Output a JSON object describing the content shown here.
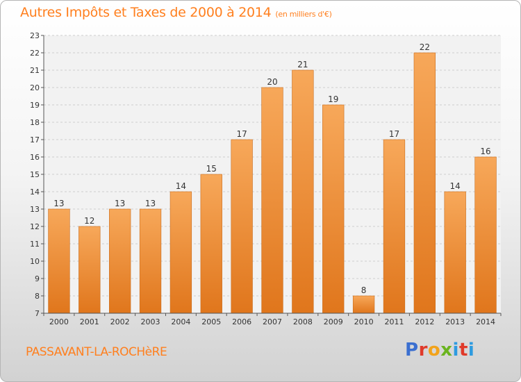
{
  "header": {
    "title": "Autres Impôts et Taxes de 2000 à 2014",
    "unit": "(en milliers d'€)"
  },
  "footer": {
    "commune": "PASSAVANT-LA-ROCHèRE",
    "logo": {
      "letters": [
        "P",
        "r",
        "o",
        "x",
        "i",
        "t",
        "i"
      ],
      "colors": [
        "#3b6fd0",
        "#e03a2a",
        "#f2a31b",
        "#6ab41f",
        "#2e9be0",
        "#e03a2a",
        "#2e9be0"
      ]
    }
  },
  "colors": {
    "accent": "#ff7f1e",
    "bar_top": "#f7a85a",
    "bar_bottom": "#e0761c"
  },
  "chart_data": {
    "type": "bar",
    "title": "Autres Impôts et Taxes de 2000 à 2014",
    "subtitle": "(en milliers d'€)",
    "categories": [
      "2000",
      "2001",
      "2002",
      "2003",
      "2004",
      "2005",
      "2006",
      "2007",
      "2008",
      "2009",
      "2010",
      "2011",
      "2012",
      "2013",
      "2014"
    ],
    "values": [
      13,
      12,
      13,
      13,
      14,
      15,
      17,
      20,
      21,
      19,
      8,
      17,
      22,
      14,
      16
    ],
    "ylim": [
      7,
      23
    ],
    "yticks": [
      7,
      8,
      9,
      10,
      11,
      12,
      13,
      14,
      15,
      16,
      17,
      18,
      19,
      20,
      21,
      22,
      23
    ],
    "grid": true,
    "legend": "none"
  }
}
